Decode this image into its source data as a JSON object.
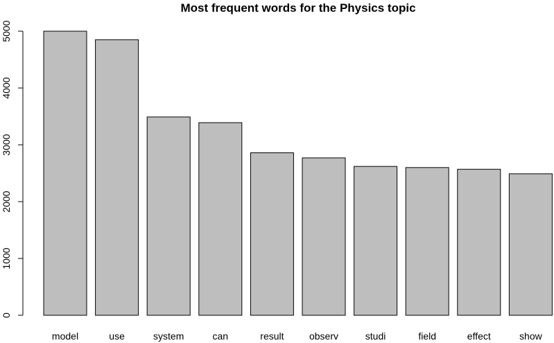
{
  "chart_data": {
    "type": "bar",
    "title": "Most frequent words for the Physics topic",
    "xlabel": "",
    "ylabel": "",
    "categories": [
      "model",
      "use",
      "system",
      "can",
      "result",
      "observ",
      "studi",
      "field",
      "effect",
      "show"
    ],
    "values": [
      5000,
      4850,
      3490,
      3390,
      2860,
      2770,
      2620,
      2600,
      2570,
      2490
    ],
    "ylim": [
      0,
      5000
    ],
    "yticks": [
      0,
      1000,
      2000,
      3000,
      4000,
      5000
    ],
    "grid": false,
    "legend": "none",
    "colors": {
      "bar_fill": "#bebebe",
      "bar_stroke": "#000000",
      "axis": "#000000",
      "background": "#ffffff"
    }
  }
}
